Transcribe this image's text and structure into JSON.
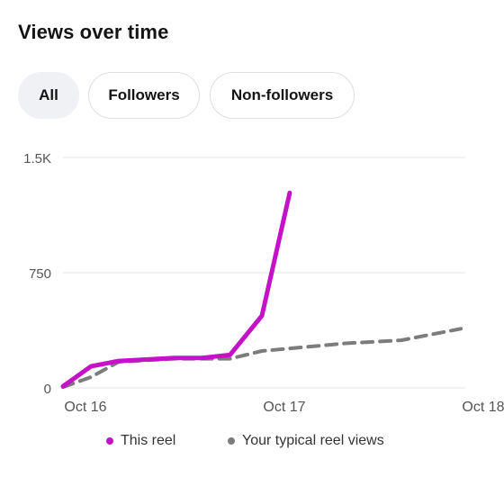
{
  "header": {
    "title": "Views over time"
  },
  "tabs": [
    {
      "label": "All",
      "active": true
    },
    {
      "label": "Followers",
      "active": false
    },
    {
      "label": "Non-followers",
      "active": false
    }
  ],
  "legend": {
    "this_reel": "This reel",
    "typical": "Your typical reel views"
  },
  "colors": {
    "this_reel": "#c512c8",
    "typical": "#7c7c7c",
    "grid": "#e6e6e6",
    "axis_text": "#555555"
  },
  "chart_data": {
    "type": "line",
    "ylim": [
      0,
      1500
    ],
    "yticks": [
      0,
      750,
      1500
    ],
    "ytick_labels": [
      "0",
      "750",
      "1.5K"
    ],
    "xlim": [
      0,
      2
    ],
    "xticks": [
      0,
      1,
      2
    ],
    "xtick_labels": [
      "Oct 16",
      "Oct 17",
      "Oct 18"
    ],
    "grid": true,
    "legend_position": "bottom",
    "series": [
      {
        "name": "This reel",
        "style": "solid",
        "x": [
          0,
          0.14,
          0.28,
          0.56,
          0.7,
          0.84,
          1.0,
          1.14
        ],
        "y": [
          10,
          140,
          175,
          195,
          195,
          215,
          470,
          1270
        ]
      },
      {
        "name": "Your typical reel views",
        "style": "dashed",
        "x": [
          0,
          0.14,
          0.28,
          0.56,
          0.7,
          0.84,
          1.0,
          1.42,
          1.7,
          2.0
        ],
        "y": [
          5,
          70,
          170,
          190,
          190,
          190,
          240,
          290,
          310,
          385
        ]
      }
    ]
  }
}
